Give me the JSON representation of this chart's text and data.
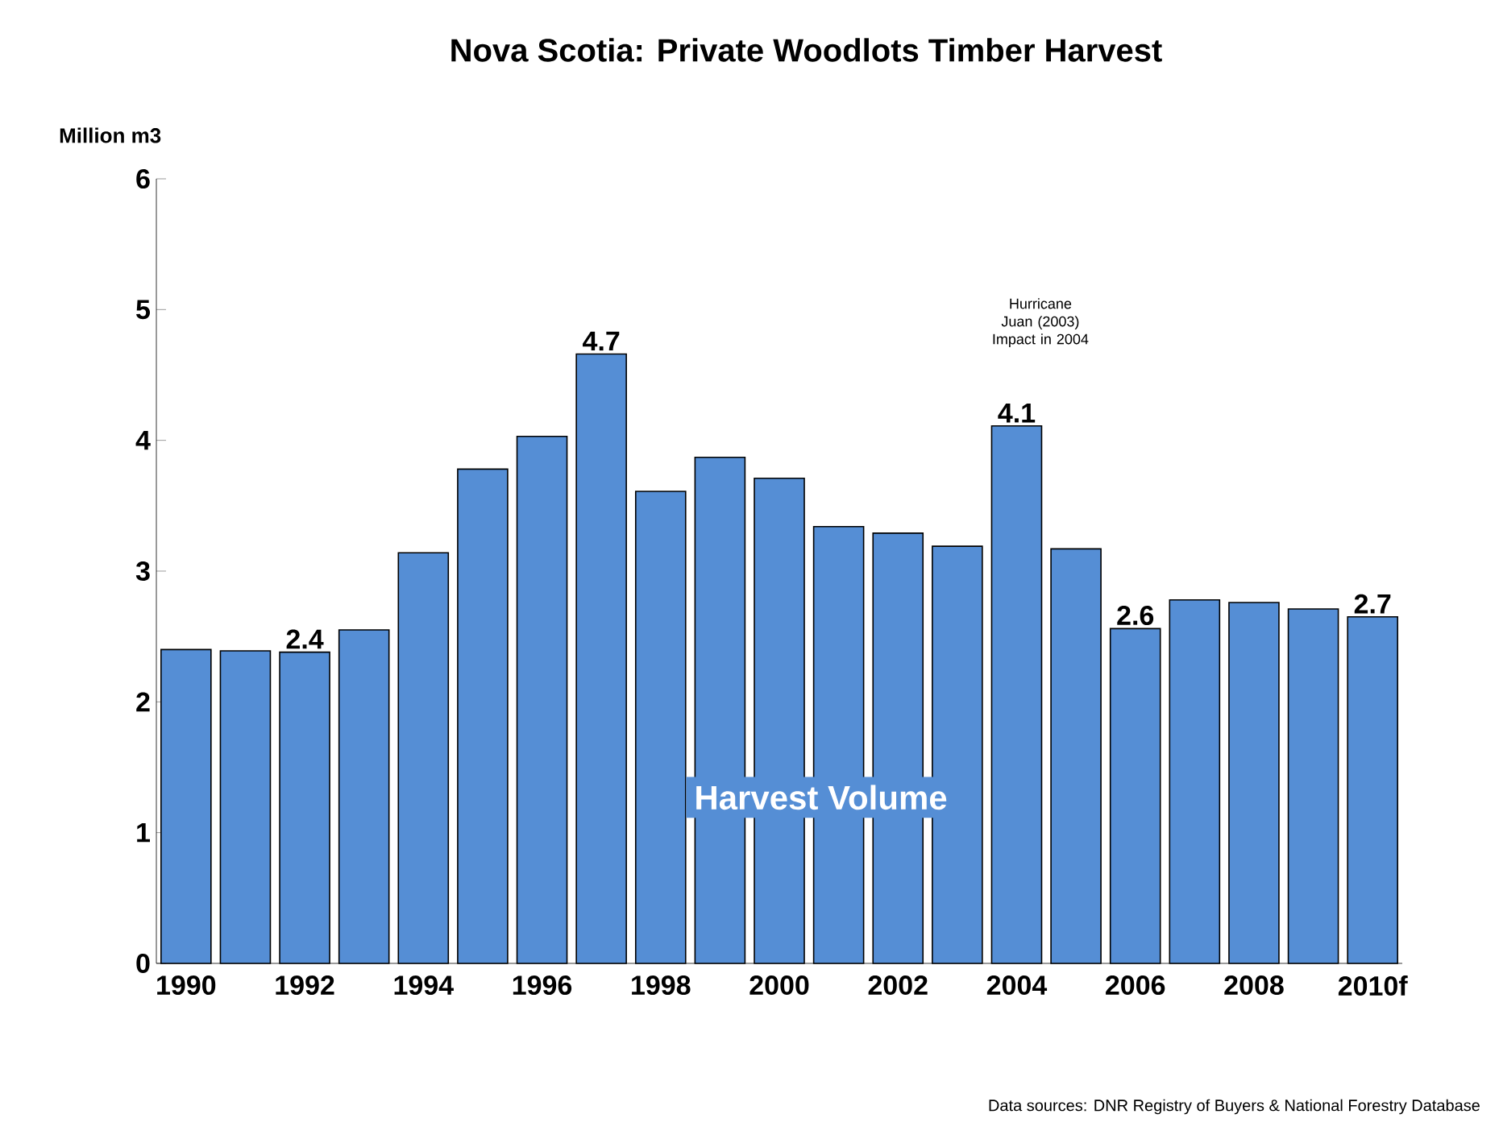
{
  "chart_data": {
    "type": "bar",
    "title": "Nova Scotia: Private Woodlots Timber Harvest",
    "ylabel": "Million m3",
    "categories": [
      "1990",
      null,
      "1992",
      null,
      "1994",
      null,
      "1996",
      null,
      "1998",
      null,
      "2000",
      null,
      "2002",
      null,
      "2004",
      null,
      "2006",
      null,
      "2008",
      null,
      "2010f"
    ],
    "values": [
      2.4,
      2.39,
      2.38,
      2.55,
      3.14,
      3.78,
      4.03,
      4.66,
      3.61,
      3.87,
      3.71,
      3.34,
      3.29,
      3.19,
      4.11,
      3.17,
      2.56,
      2.78,
      2.76,
      2.71,
      2.65
    ],
    "value_labels": [
      null,
      null,
      "2.4",
      null,
      null,
      null,
      null,
      "4.7",
      null,
      null,
      null,
      null,
      null,
      null,
      "4.1",
      null,
      "2.6",
      null,
      null,
      null,
      "2.7"
    ],
    "color": "#558ed5",
    "ylim": [
      0,
      6
    ],
    "yticks": [
      0,
      1,
      2,
      3,
      4,
      5,
      6
    ],
    "annotations": [
      "Harvest Volume",
      "Hurricane Juan (2003) Impact in 2004",
      "Data sources: DNR Registry of Buyers & National Forestry Database"
    ]
  }
}
